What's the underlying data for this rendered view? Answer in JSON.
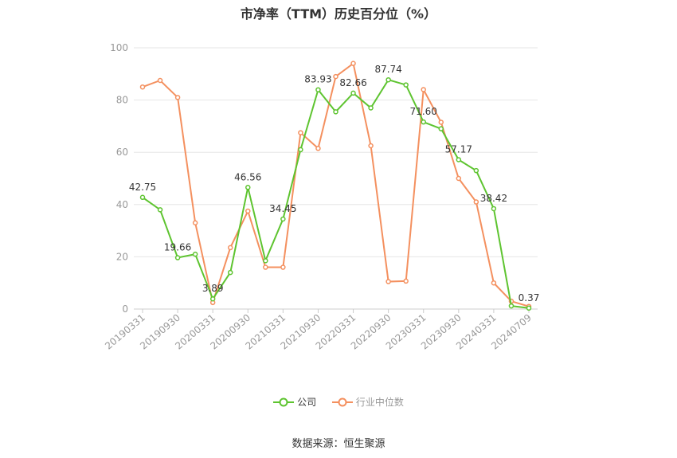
{
  "title": "市净率（TTM）历史百分位（%）",
  "legend": {
    "company": "公司",
    "industry": "行业中位数"
  },
  "source": "数据来源：恒生聚源",
  "colors": {
    "company": "#5ec430",
    "industry": "#f4905f",
    "grid": "#e6e6e6",
    "axis": "#999999"
  },
  "chart_data": {
    "type": "line",
    "title": "市净率（TTM）历史百分位（%）",
    "ylim": [
      0,
      100
    ],
    "yticks": [
      0,
      20,
      40,
      60,
      80,
      100
    ],
    "grid": true,
    "legend_position": "bottom",
    "xtick_labels": [
      "20190331",
      "20190930",
      "20200331",
      "20200930",
      "20210331",
      "20210930",
      "20220331",
      "20220930",
      "20230331",
      "20230930",
      "20240331",
      "20240709"
    ],
    "x": [
      "20190331",
      "20190630",
      "20190930",
      "20191231",
      "20200331",
      "20200630",
      "20200930",
      "20201231",
      "20210331",
      "20210630",
      "20210930",
      "20211231",
      "20220331",
      "20220630",
      "20220930",
      "20221231",
      "20230331",
      "20230630",
      "20230930",
      "20231231",
      "20240331",
      "20240630",
      "20240709"
    ],
    "series": [
      {
        "name": "公司",
        "values": [
          42.75,
          38.0,
          19.66,
          21.0,
          3.89,
          14.0,
          46.56,
          18.5,
          34.45,
          61.0,
          83.93,
          75.5,
          82.66,
          77.0,
          87.74,
          85.8,
          71.6,
          69.0,
          57.17,
          53.0,
          38.42,
          1.2,
          0.37
        ],
        "labels": {
          "0": "42.75",
          "2": "19.66",
          "4": "3.89",
          "6": "46.56",
          "8": "34.45",
          "10": "83.93",
          "12": "82.66",
          "14": "87.74",
          "16": "71.60",
          "18": "57.17",
          "20": "38.42",
          "22": "0.37"
        }
      },
      {
        "name": "行业中位数",
        "values": [
          85.0,
          87.5,
          81.0,
          33.0,
          2.5,
          23.5,
          37.5,
          16.0,
          16.0,
          67.5,
          61.5,
          89.0,
          94.0,
          62.5,
          10.5,
          10.7,
          84.0,
          71.5,
          50.0,
          41.0,
          10.0,
          3.0,
          1.0
        ]
      }
    ]
  }
}
